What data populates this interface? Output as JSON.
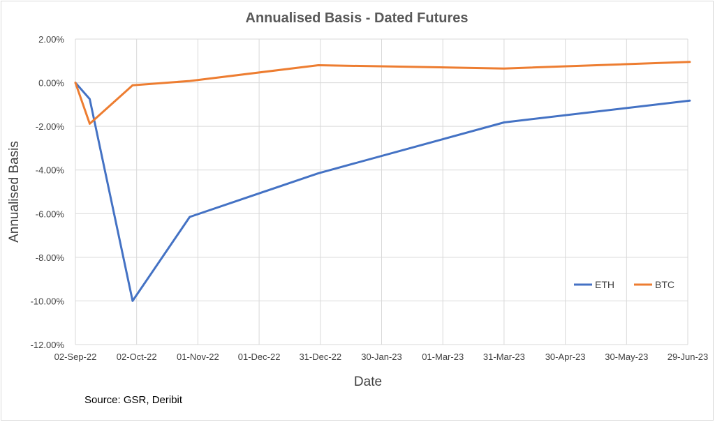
{
  "chart_data": {
    "type": "line",
    "title": "Annualised Basis - Dated Futures",
    "xlabel": "Date",
    "ylabel": "Annualised Basis",
    "x_tick_labels": [
      "02-Sep-22",
      "02-Oct-22",
      "01-Nov-22",
      "01-Dec-22",
      "31-Dec-22",
      "30-Jan-23",
      "01-Mar-23",
      "31-Mar-23",
      "30-Apr-23",
      "30-May-23",
      "29-Jun-23"
    ],
    "y_tick_labels": [
      "2.00%",
      "0.00%",
      "-2.00%",
      "-4.00%",
      "-6.00%",
      "-8.00%",
      "-10.00%",
      "-12.00%"
    ],
    "ylim": [
      -12,
      2
    ],
    "xlim": [
      "2022-09-02",
      "2023-06-29"
    ],
    "grid": true,
    "legend_position": "bottom-right",
    "series": [
      {
        "name": "ETH",
        "color": "#4472c4",
        "points": [
          {
            "x": "2022-09-02",
            "y": 0.0
          },
          {
            "x": "2022-09-09",
            "y": -0.75
          },
          {
            "x": "2022-09-30",
            "y": -10.0
          },
          {
            "x": "2022-10-28",
            "y": -6.15
          },
          {
            "x": "2022-12-30",
            "y": -4.15
          },
          {
            "x": "2023-03-31",
            "y": -1.82
          },
          {
            "x": "2023-06-30",
            "y": -0.82
          }
        ]
      },
      {
        "name": "BTC",
        "color": "#ed7d31",
        "points": [
          {
            "x": "2022-09-02",
            "y": 0.0
          },
          {
            "x": "2022-09-09",
            "y": -1.88
          },
          {
            "x": "2022-09-30",
            "y": -0.12
          },
          {
            "x": "2022-10-28",
            "y": 0.08
          },
          {
            "x": "2022-12-30",
            "y": 0.8
          },
          {
            "x": "2023-03-31",
            "y": 0.65
          },
          {
            "x": "2023-06-30",
            "y": 0.95
          }
        ]
      }
    ]
  },
  "footer": {
    "source_text": "Source: GSR, Deribit"
  }
}
